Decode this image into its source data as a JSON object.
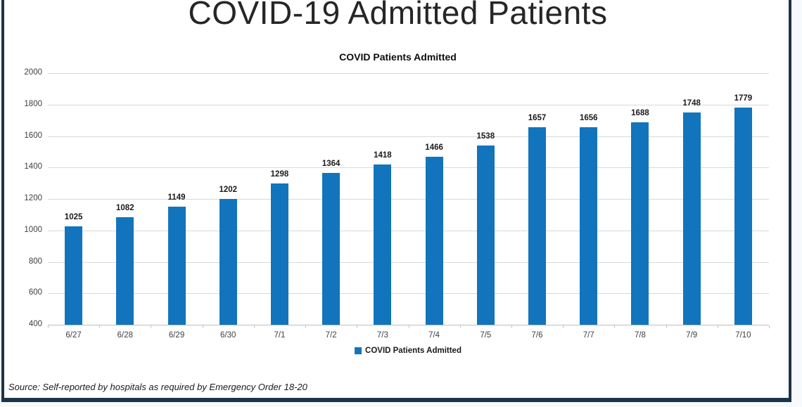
{
  "page": {
    "title": "COVID-19 Admitted Patients",
    "source_note": "Source: Self-reported by hospitals as required by Emergency Order 18-20"
  },
  "chart_data": {
    "type": "bar",
    "title": "COVID Patients Admitted",
    "categories": [
      "6/27",
      "6/28",
      "6/29",
      "6/30",
      "7/1",
      "7/2",
      "7/3",
      "7/4",
      "7/5",
      "7/6",
      "7/7",
      "7/8",
      "7/9",
      "7/10"
    ],
    "values": [
      1025,
      1082,
      1149,
      1202,
      1298,
      1364,
      1418,
      1466,
      1538,
      1657,
      1656,
      1688,
      1748,
      1779
    ],
    "xlabel": "",
    "ylabel": "",
    "ylim": [
      400,
      2000
    ],
    "ytick_step": 200,
    "grid": true,
    "data_labels": true,
    "legend": {
      "label": "COVID Patients Admitted",
      "position": "bottom"
    },
    "colors": {
      "bar": "#1274bc",
      "grid": "#d9d9d9",
      "axis": "#bfbfbf",
      "frame_border": "#1d3349",
      "text": "#404040"
    }
  }
}
